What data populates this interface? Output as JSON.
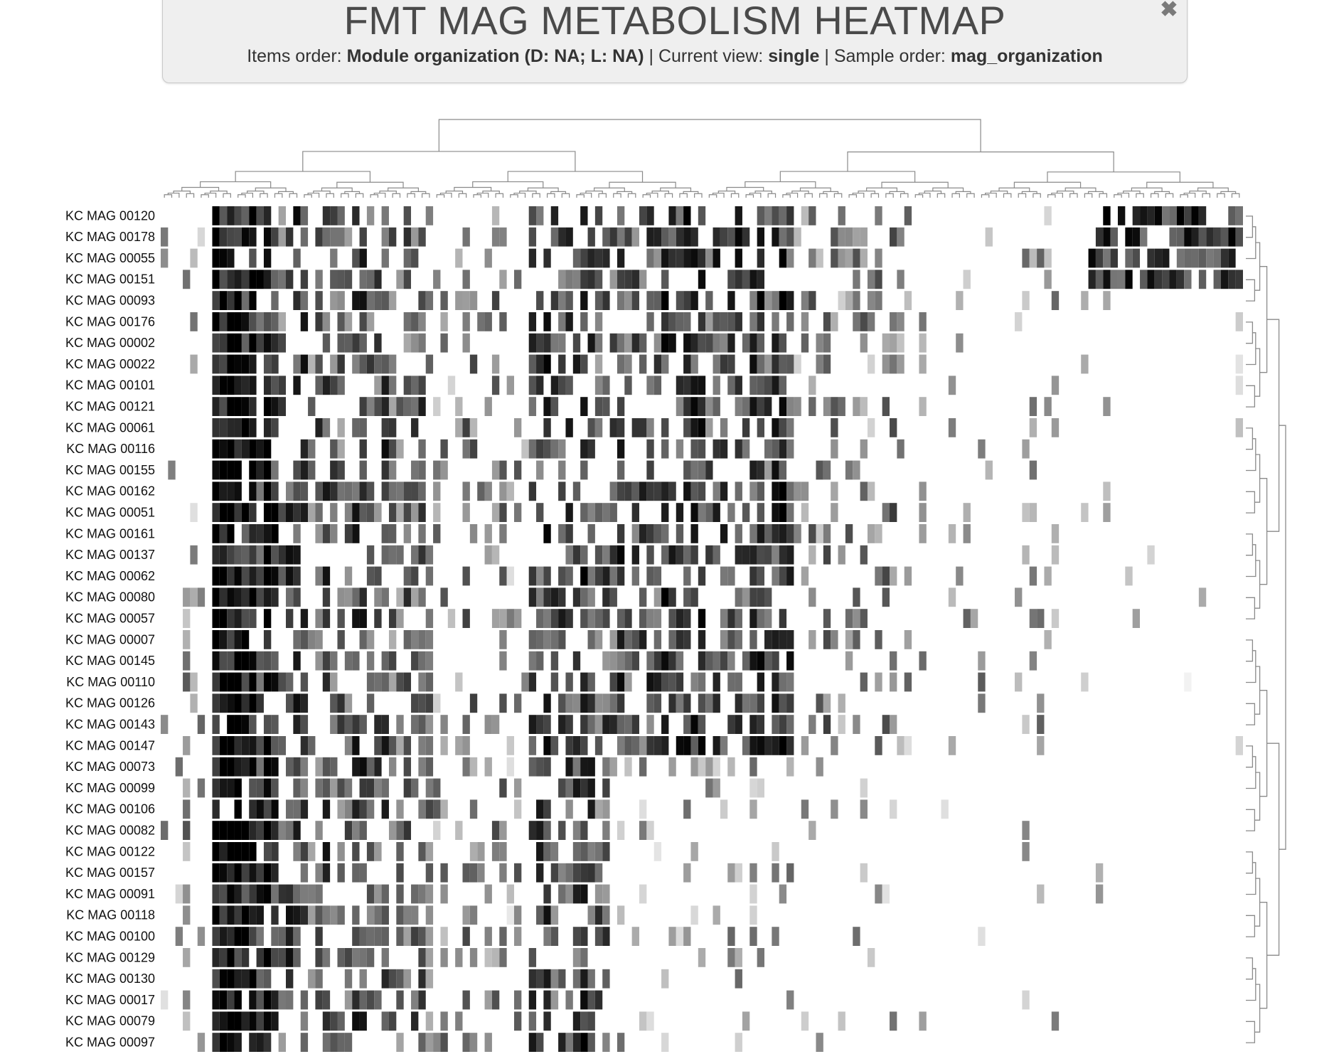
{
  "header": {
    "title": "FMT MAG METABOLISM HEATMAP",
    "items_order_label": "Items order:",
    "items_order_value": "Module organization (D: NA; L: NA)",
    "current_view_label": "Current view:",
    "current_view_value": "single",
    "sample_order_label": "Sample order:",
    "sample_order_value": "mag_organization",
    "separator": "|",
    "close_icon": "close-icon"
  },
  "chart_data": {
    "type": "heatmap",
    "title": "FMT MAG METABOLISM HEATMAP",
    "xlabel": "",
    "ylabel": "",
    "colormap": "white-to-black",
    "grid": false,
    "row_dendrogram": "right",
    "column_dendrogram": "top",
    "num_columns": 147,
    "rows": [
      "KC MAG 00120",
      "KC MAG 00178",
      "KC MAG 00055",
      "KC MAG 00151",
      "KC MAG 00093",
      "KC MAG 00176",
      "KC MAG 00002",
      "KC MAG 00022",
      "KC MAG 00101",
      "KC MAG 00121",
      "KC MAG 00061",
      "KC MAG 00116",
      "KC MAG 00155",
      "KC MAG 00162",
      "KC MAG 00051",
      "KC MAG 00161",
      "KC MAG 00137",
      "KC MAG 00062",
      "KC MAG 00080",
      "KC MAG 00057",
      "KC MAG 00007",
      "KC MAG 00145",
      "KC MAG 00110",
      "KC MAG 00126",
      "KC MAG 00143",
      "KC MAG 00147",
      "KC MAG 00073",
      "KC MAG 00099",
      "KC MAG 00106",
      "KC MAG 00082",
      "KC MAG 00122",
      "KC MAG 00157",
      "KC MAG 00091",
      "KC MAG 00118",
      "KC MAG 00100",
      "KC MAG 00129",
      "KC MAG 00130",
      "KC MAG 00017",
      "KC MAG 00079",
      "KC MAG 00097"
    ],
    "column_density": {
      "description_bands": [
        {
          "from_col": 0,
          "to_col": 6,
          "level": 0.1
        },
        {
          "from_col": 7,
          "to_col": 15,
          "level": 0.85
        },
        {
          "from_col": 16,
          "to_col": 35,
          "level": 0.55
        },
        {
          "from_col": 36,
          "to_col": 49,
          "level": 0.25
        },
        {
          "from_col": 50,
          "to_col": 85,
          "level": 0.65
        },
        {
          "from_col": 86,
          "to_col": 99,
          "level": 0.3
        },
        {
          "from_col": 100,
          "to_col": 112,
          "level": 0.12
        },
        {
          "from_col": 113,
          "to_col": 146,
          "level": 0.08
        }
      ]
    },
    "row_groups": [
      {
        "from_row": 0,
        "to_row": 3,
        "extra_right_block": true
      },
      {
        "from_row": 4,
        "to_row": 25,
        "extra_right_block": false
      },
      {
        "from_row": 26,
        "to_row": 39,
        "sparse_right": true
      }
    ]
  }
}
